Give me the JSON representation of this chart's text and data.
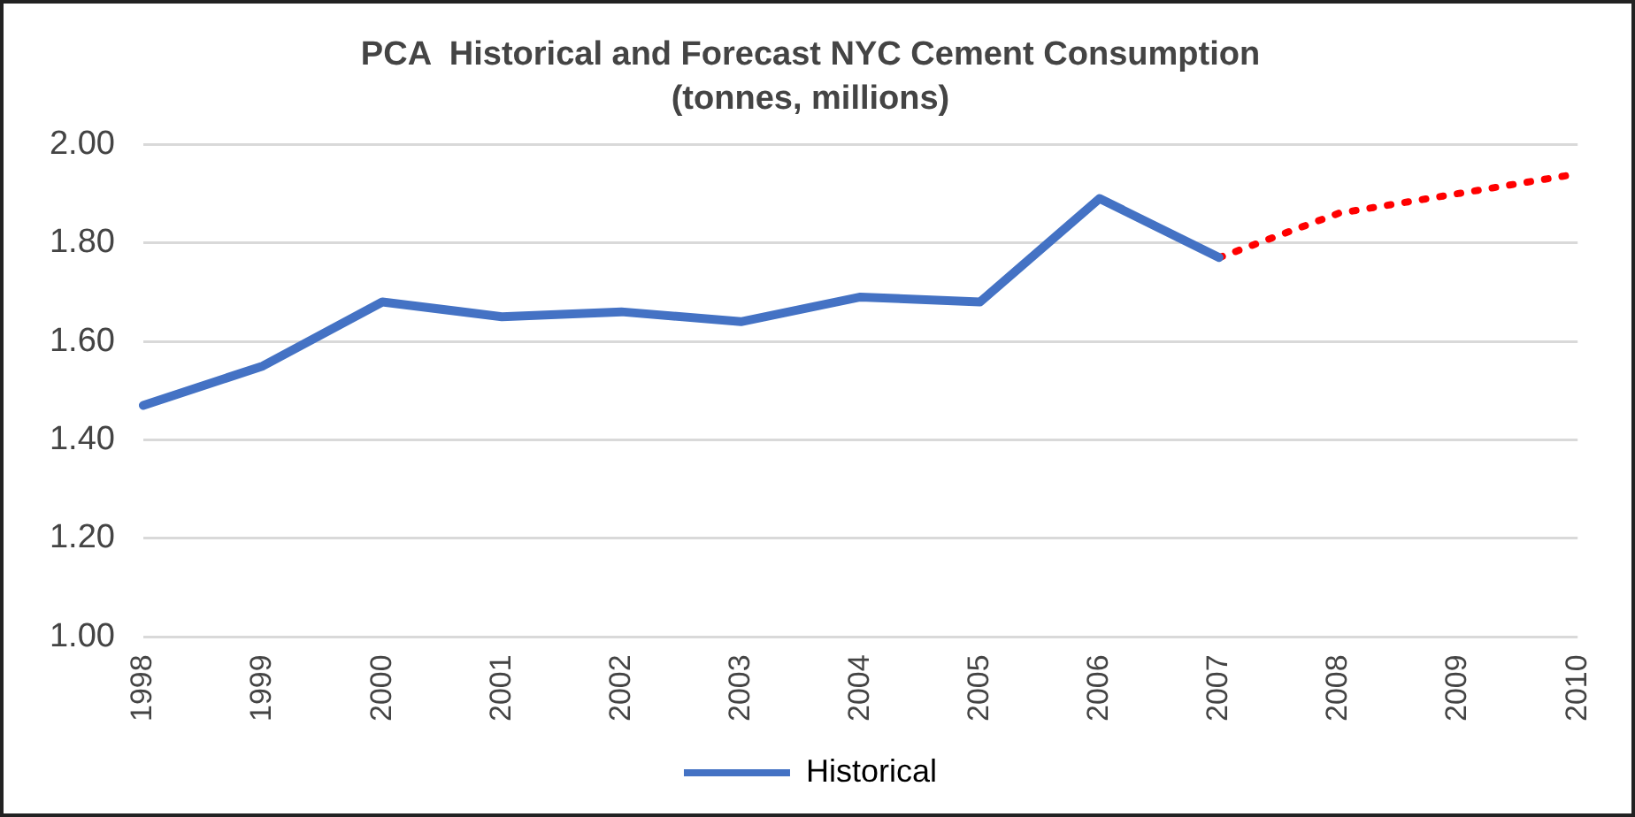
{
  "chart_data": {
    "type": "line",
    "title": "PCA  Historical and Forecast NYC Cement Consumption",
    "subtitle": "(tonnes, millions)",
    "categories": [
      "1998",
      "1999",
      "2000",
      "2001",
      "2002",
      "2003",
      "2004",
      "2005",
      "2006",
      "2007",
      "2008",
      "2009",
      "2010"
    ],
    "series": [
      {
        "name": "Historical",
        "color": "#4472c4",
        "line_style": "solid",
        "values": [
          1.47,
          1.55,
          1.68,
          1.65,
          1.66,
          1.64,
          1.69,
          1.68,
          1.89,
          1.77,
          null,
          null,
          null
        ]
      },
      {
        "color": "#ff0000",
        "line_style": "dotted",
        "values": [
          null,
          null,
          null,
          null,
          null,
          null,
          null,
          null,
          null,
          1.77,
          1.86,
          1.9,
          1.94
        ]
      }
    ],
    "ylim": [
      1.0,
      2.0
    ],
    "yticks": [
      {
        "value": 1.0,
        "label": "1.00"
      },
      {
        "value": 1.2,
        "label": "1.20"
      },
      {
        "value": 1.4,
        "label": "1.40"
      },
      {
        "value": 1.6,
        "label": "1.60"
      },
      {
        "value": 1.8,
        "label": "1.80"
      },
      {
        "value": 2.0,
        "label": "2.00"
      }
    ],
    "grid": "y",
    "legend": "bottom",
    "marker": "none"
  }
}
